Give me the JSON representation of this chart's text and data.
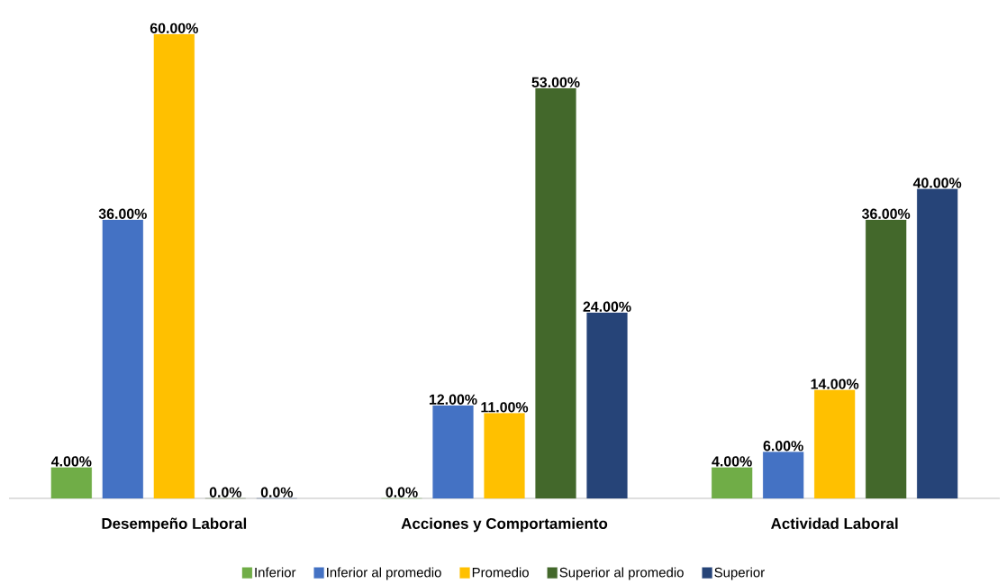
{
  "chart_data": {
    "type": "bar",
    "categories": [
      "Desempeño Laboral",
      "Acciones y Comportamiento",
      "Actividad Laboral"
    ],
    "legend": "bottom",
    "series": [
      {
        "name": "Inferior",
        "color": "#70ad47",
        "values": [
          4,
          0,
          4
        ],
        "value_labels": [
          "4.00%",
          "0.0%",
          "4.00%"
        ]
      },
      {
        "name": "Inferior al promedio",
        "color": "#4472c4",
        "values": [
          36,
          12,
          6
        ],
        "value_labels": [
          "36.00%",
          "12.00%",
          "6.00%"
        ]
      },
      {
        "name": "Promedio",
        "color": "#ffc000",
        "values": [
          60,
          11,
          14
        ],
        "value_labels": [
          "60.00%",
          "11.00%",
          "14.00%"
        ]
      },
      {
        "name": "Superior al promedio",
        "color": "#43682b",
        "values": [
          0,
          53,
          36
        ],
        "value_labels": [
          "0.0%",
          "53.00%",
          "36.00%"
        ]
      },
      {
        "name": "Superior",
        "color": "#264478",
        "values": [
          0,
          24,
          40
        ],
        "value_labels": [
          "0.0%",
          "24.00%",
          "40.00%"
        ]
      }
    ]
  }
}
